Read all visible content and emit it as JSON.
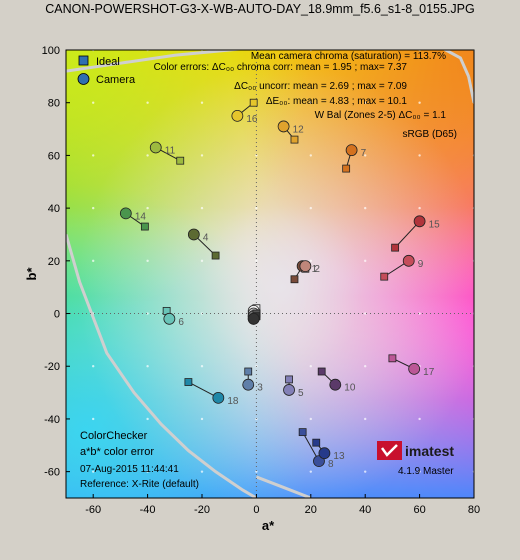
{
  "window": {
    "title": "CANON-POWERSHOT-G3-X-WB-AUTO-DAY_18.9mm_f5.6_s1-8_0155.JPG"
  },
  "chart_data": {
    "type": "scatter",
    "title": "CANON-POWERSHOT-G3-X-WB-AUTO-DAY_18.9mm_f5.6_s1-8_0155.JPG",
    "xlabel": "a*",
    "ylabel": "b*",
    "xlim": [
      -70,
      80
    ],
    "ylim": [
      -70,
      100
    ],
    "x_ticks": [
      "-60",
      "-40",
      "-20",
      "0",
      "20",
      "40",
      "60",
      "80"
    ],
    "y_ticks": [
      "-60",
      "-40",
      "-20",
      "0",
      "20",
      "40",
      "60",
      "80",
      "100"
    ],
    "grid": true,
    "legend": {
      "position": "top-left",
      "entries": [
        "Ideal",
        "Camera"
      ]
    },
    "series": [
      {
        "name": "Ideal",
        "marker": "square"
      },
      {
        "name": "Camera",
        "marker": "circle"
      }
    ],
    "patches": [
      {
        "id": "1",
        "ideal": [
          14,
          13
        ],
        "camera": [
          17,
          18
        ],
        "color": "#7a4b3a"
      },
      {
        "id": "2",
        "ideal": [
          18,
          17
        ],
        "camera": [
          18,
          18
        ],
        "color": "#c0867a"
      },
      {
        "id": "3",
        "ideal": [
          -3,
          -22
        ],
        "camera": [
          -3,
          -27
        ],
        "color": "#5f7fa9"
      },
      {
        "id": "4",
        "ideal": [
          -15,
          22
        ],
        "camera": [
          -23,
          30
        ],
        "color": "#5c6a32"
      },
      {
        "id": "5",
        "ideal": [
          12,
          -25
        ],
        "camera": [
          12,
          -29
        ],
        "color": "#8380b7"
      },
      {
        "id": "6",
        "ideal": [
          -33,
          1
        ],
        "camera": [
          -32,
          -2
        ],
        "color": "#69c4b8"
      },
      {
        "id": "7",
        "ideal": [
          33,
          55
        ],
        "camera": [
          35,
          62
        ],
        "color": "#d4721f"
      },
      {
        "id": "8",
        "ideal": [
          17,
          -45
        ],
        "camera": [
          23,
          -56
        ],
        "color": "#3a4f9a"
      },
      {
        "id": "9",
        "ideal": [
          47,
          14
        ],
        "camera": [
          56,
          20
        ],
        "color": "#c54d5b"
      },
      {
        "id": "10",
        "ideal": [
          24,
          -22
        ],
        "camera": [
          29,
          -27
        ],
        "color": "#5b3a69"
      },
      {
        "id": "11",
        "ideal": [
          -28,
          58
        ],
        "camera": [
          -37,
          63
        ],
        "color": "#9dba3f"
      },
      {
        "id": "12",
        "ideal": [
          14,
          66
        ],
        "camera": [
          10,
          71
        ],
        "color": "#e0a32d"
      },
      {
        "id": "13",
        "ideal": [
          22,
          -49
        ],
        "camera": [
          25,
          -53
        ],
        "color": "#263a8a"
      },
      {
        "id": "14",
        "ideal": [
          -41,
          33
        ],
        "camera": [
          -48,
          38
        ],
        "color": "#4a954d"
      },
      {
        "id": "15",
        "ideal": [
          51,
          25
        ],
        "camera": [
          60,
          35
        ],
        "color": "#b1343b"
      },
      {
        "id": "16",
        "ideal": [
          -1,
          80
        ],
        "camera": [
          -7,
          75
        ],
        "color": "#e5c52c"
      },
      {
        "id": "17",
        "ideal": [
          50,
          -17
        ],
        "camera": [
          58,
          -21
        ],
        "color": "#bb5796"
      },
      {
        "id": "18",
        "ideal": [
          -25,
          -26
        ],
        "camera": [
          -14,
          -32
        ],
        "color": "#1f88a8"
      },
      {
        "id": "19",
        "ideal": [
          0,
          2
        ],
        "camera": [
          -1,
          1
        ],
        "color": "#f2f2f2"
      },
      {
        "id": "20",
        "ideal": [
          0,
          0
        ],
        "camera": [
          -1,
          0
        ],
        "color": "#c8c8c8"
      },
      {
        "id": "21",
        "ideal": [
          0,
          0
        ],
        "camera": [
          -1,
          -1
        ],
        "color": "#a0a0a0"
      },
      {
        "id": "22",
        "ideal": [
          0,
          -1
        ],
        "camera": [
          -1,
          -1
        ],
        "color": "#7a7a7a"
      },
      {
        "id": "23",
        "ideal": [
          0,
          0
        ],
        "camera": [
          -1,
          -2
        ],
        "color": "#555555"
      },
      {
        "id": "24",
        "ideal": [
          0,
          -1
        ],
        "camera": [
          -1,
          -2
        ],
        "color": "#333333"
      }
    ],
    "gamut_boundary": [
      [
        -70,
        -70
      ],
      [
        -60,
        -70
      ],
      [
        -50,
        -69
      ],
      [
        -40,
        -67
      ],
      [
        -30,
        -64
      ],
      [
        -20,
        -60
      ],
      [
        -10,
        -55
      ],
      [
        0,
        -50
      ],
      [
        10,
        -46
      ],
      [
        15,
        -44
      ],
      [
        20,
        -45
      ],
      [
        30,
        -50
      ],
      [
        40,
        -57
      ],
      [
        50,
        -65
      ],
      [
        56,
        -70
      ]
    ],
    "gamut_boundary_upper": [
      [
        -70,
        92
      ],
      [
        -50,
        95
      ],
      [
        -30,
        98
      ],
      [
        -10,
        100
      ],
      [
        10,
        102
      ],
      [
        30,
        103
      ],
      [
        50,
        103
      ],
      [
        66,
        102
      ],
      [
        75,
        97
      ],
      [
        78,
        90
      ]
    ],
    "gamut_boundary_left": [
      [
        -70,
        30
      ],
      [
        -65,
        12
      ],
      [
        -55,
        -15
      ],
      [
        -45,
        -30
      ],
      [
        -35,
        -42
      ],
      [
        -25,
        -52
      ],
      [
        -15,
        -60
      ],
      [
        -5,
        -67
      ],
      [
        0,
        -70
      ]
    ],
    "annotations": {
      "line1": "Mean camera chroma (saturation) = 113.7%",
      "line2": "Color errors:  ΔC₀₀ chroma corr: mean = 1.95 ; max= 7.37",
      "line3": "ΔC₀₀ uncorr: mean = 2.69 ; max = 7.09",
      "line4": "ΔE₀₀: mean = 4.83 ; max = 10.1",
      "line5": "W Bal (Zones 2-5)  ΔC₀₀ = 1.1",
      "line6": "sRGB (D65)"
    }
  },
  "info_box": {
    "line1": "ColorChecker",
    "line2": "a*b* color error",
    "line3": "07-Aug-2015 11:44:41",
    "line4": "Reference: X-Rite (default)"
  },
  "logo": {
    "text": "imatest",
    "version": "4.1.9  Master"
  }
}
